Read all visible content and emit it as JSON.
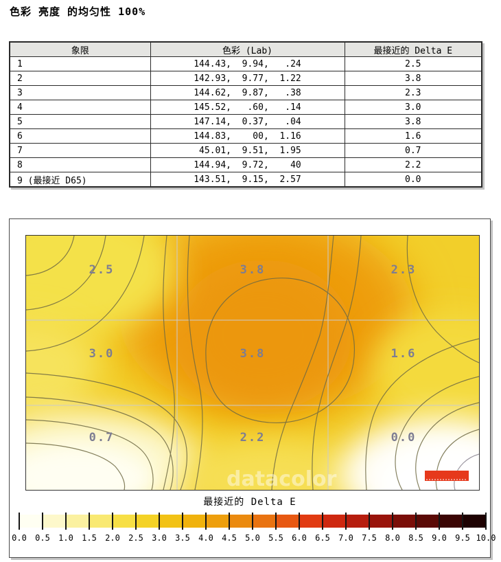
{
  "title": "色彩 亮度 的均匀性 100%",
  "table": {
    "headers": [
      "象限",
      "色彩 (Lab)",
      "最接近的 Delta E"
    ],
    "rows": [
      {
        "quadrant": "1",
        "lab": "144.43,  9.94,   .24",
        "delta_e": "2.5"
      },
      {
        "quadrant": "2",
        "lab": "142.93,  9.77,  1.22",
        "delta_e": "3.8"
      },
      {
        "quadrant": "3",
        "lab": "144.62,  9.87,   .38",
        "delta_e": "2.3"
      },
      {
        "quadrant": "4",
        "lab": "145.52,   .60,   .14",
        "delta_e": "3.0"
      },
      {
        "quadrant": "5",
        "lab": "147.14,  0.37,   .04",
        "delta_e": "3.8"
      },
      {
        "quadrant": "6",
        "lab": "144.83,    00,  1.16",
        "delta_e": "1.6"
      },
      {
        "quadrant": "7",
        "lab": " 45.01,  9.51,  1.95",
        "delta_e": "0.7"
      },
      {
        "quadrant": "8",
        "lab": "144.94,  9.72,    40",
        "delta_e": "2.2"
      },
      {
        "quadrant": "9 (最接近 D65)",
        "lab": "143.51,  9.15,  2.57",
        "delta_e": "0.0"
      }
    ]
  },
  "chart_data": {
    "type": "heatmap",
    "title": "最接近的 Delta E",
    "grid": {
      "rows": 3,
      "cols": 3,
      "gridlines": true
    },
    "values": [
      [
        2.5,
        3.8,
        2.3
      ],
      [
        3.0,
        3.8,
        1.6
      ],
      [
        0.7,
        2.2,
        0.0
      ]
    ],
    "labels": [
      [
        "2.5",
        "3.8",
        "2.3"
      ],
      [
        "3.0",
        "3.8",
        "1.6"
      ],
      [
        "0.7",
        "2.2",
        "0.0"
      ]
    ],
    "label_color": "#7d7d92",
    "watermark": "datacolor",
    "logo_color": "#e6391c",
    "legend_position": "bottom",
    "colorbar": {
      "min": 0.0,
      "max": 10.0,
      "step": 0.5,
      "tick_labels": [
        "0.0",
        "0.5",
        "1.0",
        "1.5",
        "2.0",
        "2.5",
        "3.0",
        "3.5",
        "4.0",
        "4.5",
        "5.0",
        "5.5",
        "6.0",
        "6.5",
        "7.0",
        "7.5",
        "8.0",
        "8.5",
        "9.0",
        "9.5",
        "10.0"
      ],
      "segment_colors": [
        "#fffff2",
        "#fdf8cb",
        "#fbf1a0",
        "#f9e972",
        "#f7df45",
        "#f4d226",
        "#f2c215",
        "#f0b20d",
        "#ee9f0d",
        "#eb8a0f",
        "#e97311",
        "#e75812",
        "#e13b12",
        "#ce2810",
        "#b61d0e",
        "#99140b",
        "#7a0e08",
        "#5a0a06",
        "#3b0504",
        "#1e0202"
      ]
    }
  }
}
